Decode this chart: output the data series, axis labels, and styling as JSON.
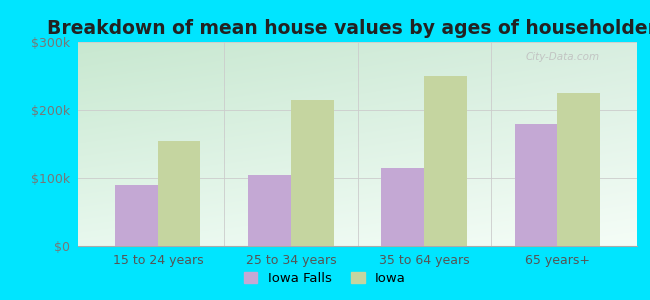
{
  "title": "Breakdown of mean house values by ages of householders",
  "categories": [
    "15 to 24 years",
    "25 to 34 years",
    "35 to 64 years",
    "65 years+"
  ],
  "iowa_falls": [
    90000,
    105000,
    115000,
    180000
  ],
  "iowa": [
    155000,
    215000,
    250000,
    225000
  ],
  "iowa_falls_color": "#c4a8d4",
  "iowa_color": "#c5d5a0",
  "background_color": "#00e5ff",
  "ylim": [
    0,
    300000
  ],
  "yticks": [
    0,
    100000,
    200000,
    300000
  ],
  "ytick_labels": [
    "$0",
    "$100k",
    "$200k",
    "$300k"
  ],
  "legend_labels": [
    "Iowa Falls",
    "Iowa"
  ],
  "bar_width": 0.32,
  "title_fontsize": 13.5,
  "tick_fontsize": 9,
  "legend_fontsize": 9.5,
  "watermark": "City-Data.com"
}
